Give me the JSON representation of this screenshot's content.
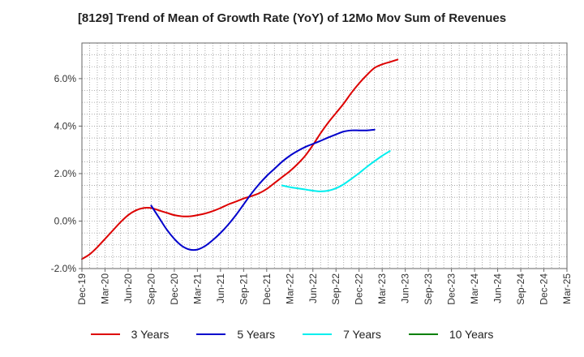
{
  "chart_data": {
    "type": "line",
    "title": "[8129]  Trend of Mean of Growth Rate (YoY) of 12Mo Mov Sum of Revenues",
    "xlabel": "",
    "ylabel": "",
    "ylim": [
      -2.0,
      7.5
    ],
    "y_ticks": [
      -2.0,
      0.0,
      2.0,
      4.0,
      6.0
    ],
    "y_tick_labels": [
      "-2.0%",
      "0.0%",
      "2.0%",
      "4.0%",
      "6.0%"
    ],
    "x_tick_labels": [
      "Dec-19",
      "Mar-20",
      "Jun-20",
      "Sep-20",
      "Dec-20",
      "Mar-21",
      "Jun-21",
      "Sep-21",
      "Dec-21",
      "Mar-22",
      "Jun-22",
      "Sep-22",
      "Dec-22",
      "Mar-23",
      "Jun-23",
      "Sep-23",
      "Dec-23",
      "Mar-24",
      "Jun-24",
      "Sep-24",
      "Dec-24",
      "Mar-25"
    ],
    "grid": true,
    "legend_position": "bottom",
    "series": [
      {
        "name": "3 Years",
        "color": "#dd0000",
        "start_index": 0,
        "values": [
          -1.6,
          -1.4,
          -1.1,
          -0.75,
          -0.4,
          -0.05,
          0.25,
          0.45,
          0.55,
          0.55,
          0.45,
          0.35,
          0.25,
          0.2,
          0.2,
          0.25,
          0.32,
          0.42,
          0.55,
          0.7,
          0.82,
          0.95,
          1.05,
          1.17,
          1.35,
          1.6,
          1.85,
          2.1,
          2.4,
          2.75,
          3.2,
          3.7,
          4.15,
          4.55,
          4.95,
          5.4,
          5.8,
          6.15,
          6.45,
          6.6,
          6.7,
          6.8
        ]
      },
      {
        "name": "5 Years",
        "color": "#0000cc",
        "start_index": 9,
        "values": [
          0.65,
          0.15,
          -0.35,
          -0.75,
          -1.05,
          -1.2,
          -1.2,
          -1.05,
          -0.8,
          -0.5,
          -0.15,
          0.25,
          0.7,
          1.15,
          1.55,
          1.9,
          2.2,
          2.5,
          2.75,
          2.95,
          3.12,
          3.25,
          3.38,
          3.52,
          3.65,
          3.77,
          3.82,
          3.82,
          3.82,
          3.85
        ]
      },
      {
        "name": "7 Years",
        "color": "#00eeee",
        "start_index": 26,
        "values": [
          1.5,
          1.43,
          1.38,
          1.33,
          1.28,
          1.25,
          1.28,
          1.38,
          1.55,
          1.78,
          2.02,
          2.28,
          2.52,
          2.75,
          2.95
        ]
      },
      {
        "name": "10 Years",
        "color": "#008000",
        "start_index": 0,
        "values": []
      }
    ]
  }
}
